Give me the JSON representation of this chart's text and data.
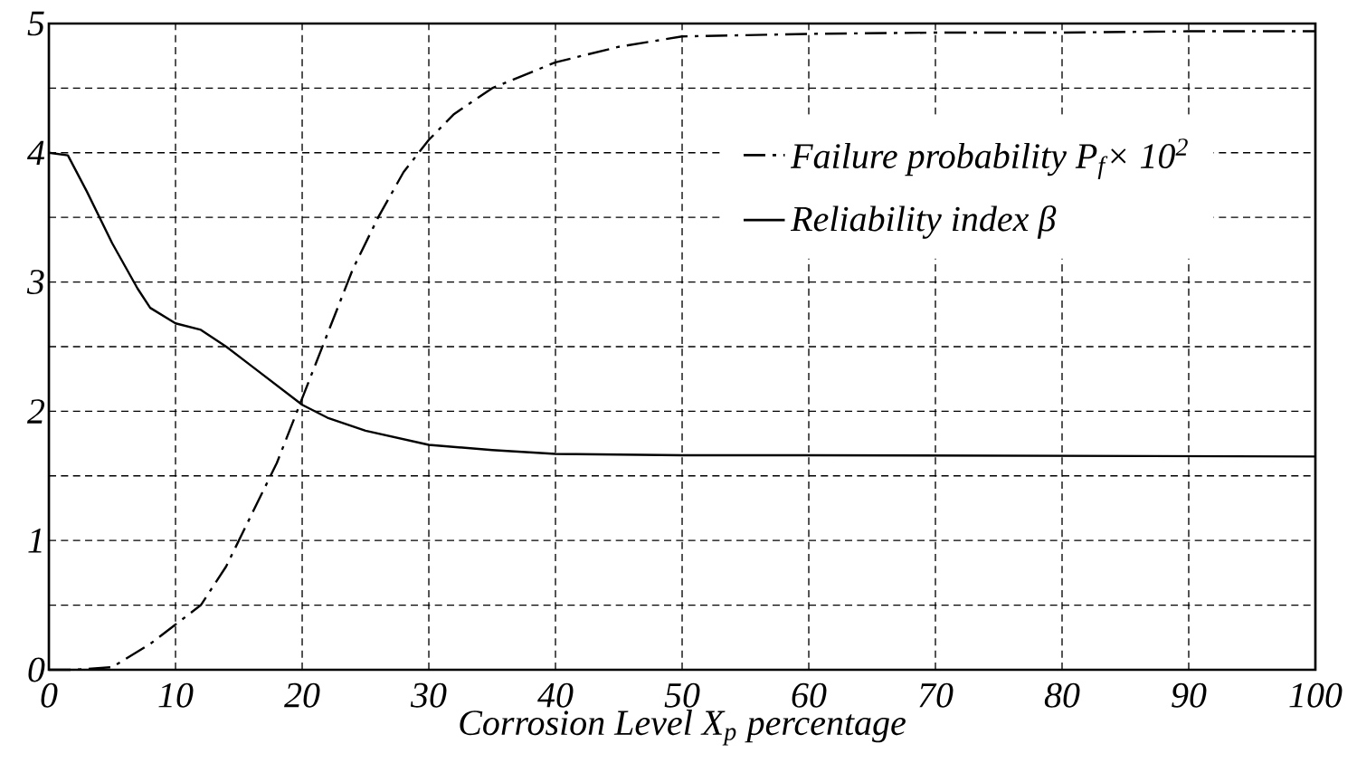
{
  "chart_data": {
    "type": "line",
    "xlabel": "Corrosion Level X$_{p}$ percentage",
    "xlim": [
      0,
      100
    ],
    "xticks": [
      0,
      10,
      20,
      30,
      40,
      50,
      60,
      70,
      80,
      90,
      100
    ],
    "ylim": [
      0,
      5
    ],
    "yticks": [
      0,
      {
        "value": 0.5,
        "label": null
      },
      1,
      {
        "value": 1.5,
        "label": null
      },
      2,
      {
        "value": 2.5,
        "label": null
      },
      3,
      {
        "value": 3.5,
        "label": null
      },
      4,
      {
        "value": 4.5,
        "label": null
      },
      5
    ],
    "grid": true,
    "legend": "top right",
    "series": [
      {
        "name": "Failure probability P$_{f}$× 10$^{2}$",
        "color": "#000000",
        "line_style": "dashdot",
        "x": [
          0,
          2,
          5,
          8,
          10,
          12,
          14,
          16,
          18,
          20,
          22,
          24,
          26,
          28,
          30,
          32,
          35,
          40,
          45,
          50,
          60,
          70,
          80,
          90,
          100
        ],
        "values": [
          0,
          0,
          0.02,
          0.2,
          0.35,
          0.5,
          0.8,
          1.2,
          1.6,
          2.1,
          2.6,
          3.1,
          3.5,
          3.85,
          4.1,
          4.3,
          4.5,
          4.7,
          4.82,
          4.9,
          4.92,
          4.93,
          4.93,
          4.94,
          4.94
        ]
      },
      {
        "name": "Reliability index β",
        "color": "#000000",
        "line_style": "solid",
        "x": [
          0,
          1.5,
          3,
          5,
          7,
          8,
          10,
          12,
          14,
          16,
          18,
          20,
          22,
          25,
          30,
          35,
          40,
          50,
          60,
          100
        ],
        "values": [
          4.0,
          3.98,
          3.7,
          3.3,
          2.95,
          2.8,
          2.68,
          2.63,
          2.5,
          2.35,
          2.2,
          2.05,
          1.95,
          1.85,
          1.74,
          1.7,
          1.67,
          1.66,
          1.66,
          1.65
        ]
      }
    ]
  }
}
